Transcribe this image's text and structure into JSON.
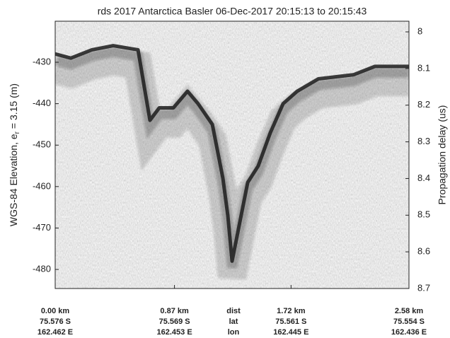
{
  "chart_data": {
    "type": "line",
    "title": "rds 2017 Antarctica Basler 06-Dec-2017 20:15:13 to 20:15:43",
    "ylabel": [
      "WGS-84 Elevation, e",
      "r",
      " = 3.15 (m)"
    ],
    "y2label": "Propagation delay (us)",
    "x": [
      0,
      0.114,
      0.268,
      0.423,
      0.604,
      0.655,
      0.691,
      0.759,
      0.862,
      0.965,
      1.042,
      1.146,
      1.223,
      1.259,
      1.29,
      1.326,
      1.404,
      1.481,
      1.569,
      1.662,
      1.765,
      1.92,
      2.178,
      2.332,
      2.58
    ],
    "series": [
      {
        "color": "#1c1c1c",
        "values": [
          -428,
          -429,
          -427,
          -426,
          -427,
          -437,
          -444,
          -441,
          -441,
          -437,
          -440,
          -445,
          -458,
          -467,
          -478,
          -472,
          -459,
          -455,
          -447,
          -440,
          -437,
          -434,
          -433,
          -431,
          -431
        ]
      }
    ],
    "xlim": [
      0,
      2.58
    ],
    "xticks": [
      {
        "value": 0,
        "label": "0.00 km"
      },
      {
        "value": 0.87,
        "label": "0.87 km"
      },
      {
        "value": 1.72,
        "label": "1.72 km"
      },
      {
        "value": 2.58,
        "label": "2.58 km"
      }
    ],
    "xtick_lat": [
      "75.576 S",
      "75.569 S",
      "75.561 S",
      "75.554 S"
    ],
    "xtick_lon": [
      "162.462 E",
      "162.453 E",
      "162.445 E",
      "162.436 E"
    ],
    "xtick_row_labels": [
      "dist",
      "lat",
      "lon"
    ],
    "ylim": [
      -484.6,
      -420.1
    ],
    "yticks": [
      -480,
      -470,
      -460,
      -450,
      -440,
      -430
    ],
    "y2lim": [
      8.7,
      7.971
    ],
    "y2ticks": [
      8,
      8.1,
      8.2,
      8.3,
      8.4,
      8.5,
      8.6,
      8.7
    ]
  }
}
